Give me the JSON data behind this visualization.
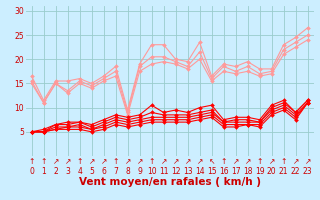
{
  "x": [
    0,
    1,
    2,
    3,
    4,
    5,
    6,
    7,
    8,
    9,
    10,
    11,
    12,
    13,
    14,
    15,
    16,
    17,
    18,
    19,
    20,
    21,
    22,
    23
  ],
  "series": [
    {
      "name": "rafales_top",
      "color": "#ff9999",
      "lw": 0.8,
      "marker": "D",
      "ms": 2.0,
      "values": [
        16.5,
        11.5,
        15.5,
        15.5,
        16.0,
        15.0,
        16.5,
        18.5,
        9.5,
        19.0,
        23.0,
        23.0,
        20.0,
        19.5,
        23.5,
        16.5,
        19.0,
        18.5,
        19.5,
        18.0,
        18.0,
        23.0,
        24.5,
        26.5
      ]
    },
    {
      "name": "rafales_upper",
      "color": "#ff9999",
      "lw": 0.8,
      "marker": "D",
      "ms": 2.0,
      "values": [
        15.5,
        11.0,
        15.0,
        13.5,
        15.5,
        14.5,
        16.0,
        17.5,
        9.0,
        18.5,
        20.5,
        20.5,
        19.5,
        18.5,
        21.5,
        16.0,
        18.5,
        17.5,
        18.5,
        17.0,
        17.5,
        22.0,
        23.5,
        25.0
      ]
    },
    {
      "name": "rafales_mid",
      "color": "#ff9999",
      "lw": 0.8,
      "marker": "D",
      "ms": 2.0,
      "values": [
        15.0,
        11.0,
        15.0,
        13.0,
        15.0,
        14.0,
        15.5,
        16.5,
        8.5,
        17.5,
        19.0,
        19.5,
        19.0,
        18.0,
        20.0,
        15.5,
        17.5,
        17.0,
        17.5,
        16.5,
        17.0,
        21.0,
        22.5,
        24.0
      ]
    },
    {
      "name": "vent_top",
      "color": "#ff0000",
      "lw": 0.8,
      "marker": "D",
      "ms": 2.0,
      "values": [
        5.0,
        5.5,
        6.5,
        7.0,
        7.0,
        6.5,
        7.5,
        8.5,
        8.0,
        8.5,
        10.5,
        9.0,
        9.5,
        9.0,
        10.0,
        10.5,
        7.5,
        8.0,
        8.0,
        7.5,
        10.5,
        11.5,
        9.0,
        11.5
      ]
    },
    {
      "name": "vent_upper",
      "color": "#ff0000",
      "lw": 0.8,
      "marker": "D",
      "ms": 2.0,
      "values": [
        5.0,
        5.0,
        6.5,
        6.5,
        7.0,
        6.0,
        7.0,
        8.0,
        7.5,
        8.0,
        9.0,
        8.5,
        8.5,
        8.5,
        9.0,
        9.5,
        7.0,
        7.5,
        7.5,
        7.0,
        10.0,
        11.0,
        9.0,
        11.5
      ]
    },
    {
      "name": "vent_mid",
      "color": "#ff0000",
      "lw": 0.8,
      "marker": "D",
      "ms": 2.0,
      "values": [
        5.0,
        5.0,
        6.0,
        6.0,
        6.5,
        5.5,
        6.5,
        7.5,
        7.0,
        7.5,
        8.0,
        8.0,
        8.0,
        8.0,
        8.5,
        9.0,
        7.0,
        7.0,
        7.0,
        7.0,
        9.5,
        10.5,
        8.5,
        11.0
      ]
    },
    {
      "name": "vent_lower",
      "color": "#ff0000",
      "lw": 0.8,
      "marker": "D",
      "ms": 2.0,
      "values": [
        5.0,
        5.0,
        5.5,
        6.0,
        6.0,
        5.5,
        6.0,
        7.0,
        6.5,
        7.0,
        7.5,
        7.5,
        7.5,
        7.5,
        8.0,
        8.5,
        6.5,
        6.5,
        6.5,
        6.5,
        9.0,
        10.0,
        8.0,
        11.0
      ]
    },
    {
      "name": "vent_bot",
      "color": "#ff0000",
      "lw": 0.8,
      "marker": "D",
      "ms": 2.0,
      "values": [
        5.0,
        5.0,
        5.5,
        5.5,
        5.5,
        5.0,
        5.5,
        6.5,
        6.0,
        6.5,
        7.0,
        7.0,
        7.0,
        7.0,
        7.5,
        8.0,
        6.0,
        6.0,
        6.5,
        6.0,
        8.5,
        9.5,
        7.5,
        11.0
      ]
    }
  ],
  "xlabel": "Vent moyen/en rafales ( km/h )",
  "xlim": [
    -0.5,
    23.5
  ],
  "ylim": [
    0,
    31
  ],
  "ytick_vals": [
    5,
    10,
    15,
    20,
    25,
    30
  ],
  "ytick_labels": [
    "5",
    "10",
    "15",
    "20",
    "25",
    "30"
  ],
  "xtick_vals": [
    0,
    1,
    2,
    3,
    4,
    5,
    6,
    7,
    8,
    9,
    10,
    11,
    12,
    13,
    14,
    15,
    16,
    17,
    18,
    19,
    20,
    21,
    22,
    23
  ],
  "bg_color": "#cceeff",
  "grid_color": "#99cccc",
  "axis_color": "#cc0000",
  "xlabel_fontsize": 7.5,
  "tick_fontsize": 5.5,
  "arrow_symbols": [
    "↑",
    "↑",
    "↗",
    "↗",
    "↑",
    "↗",
    "↗",
    "↑",
    "↗",
    "↗",
    "↑",
    "↗",
    "↗",
    "↗",
    "↗",
    "↖",
    "↑",
    "↗",
    "↗",
    "↑",
    "↗",
    "↑",
    "↗",
    "↗"
  ]
}
